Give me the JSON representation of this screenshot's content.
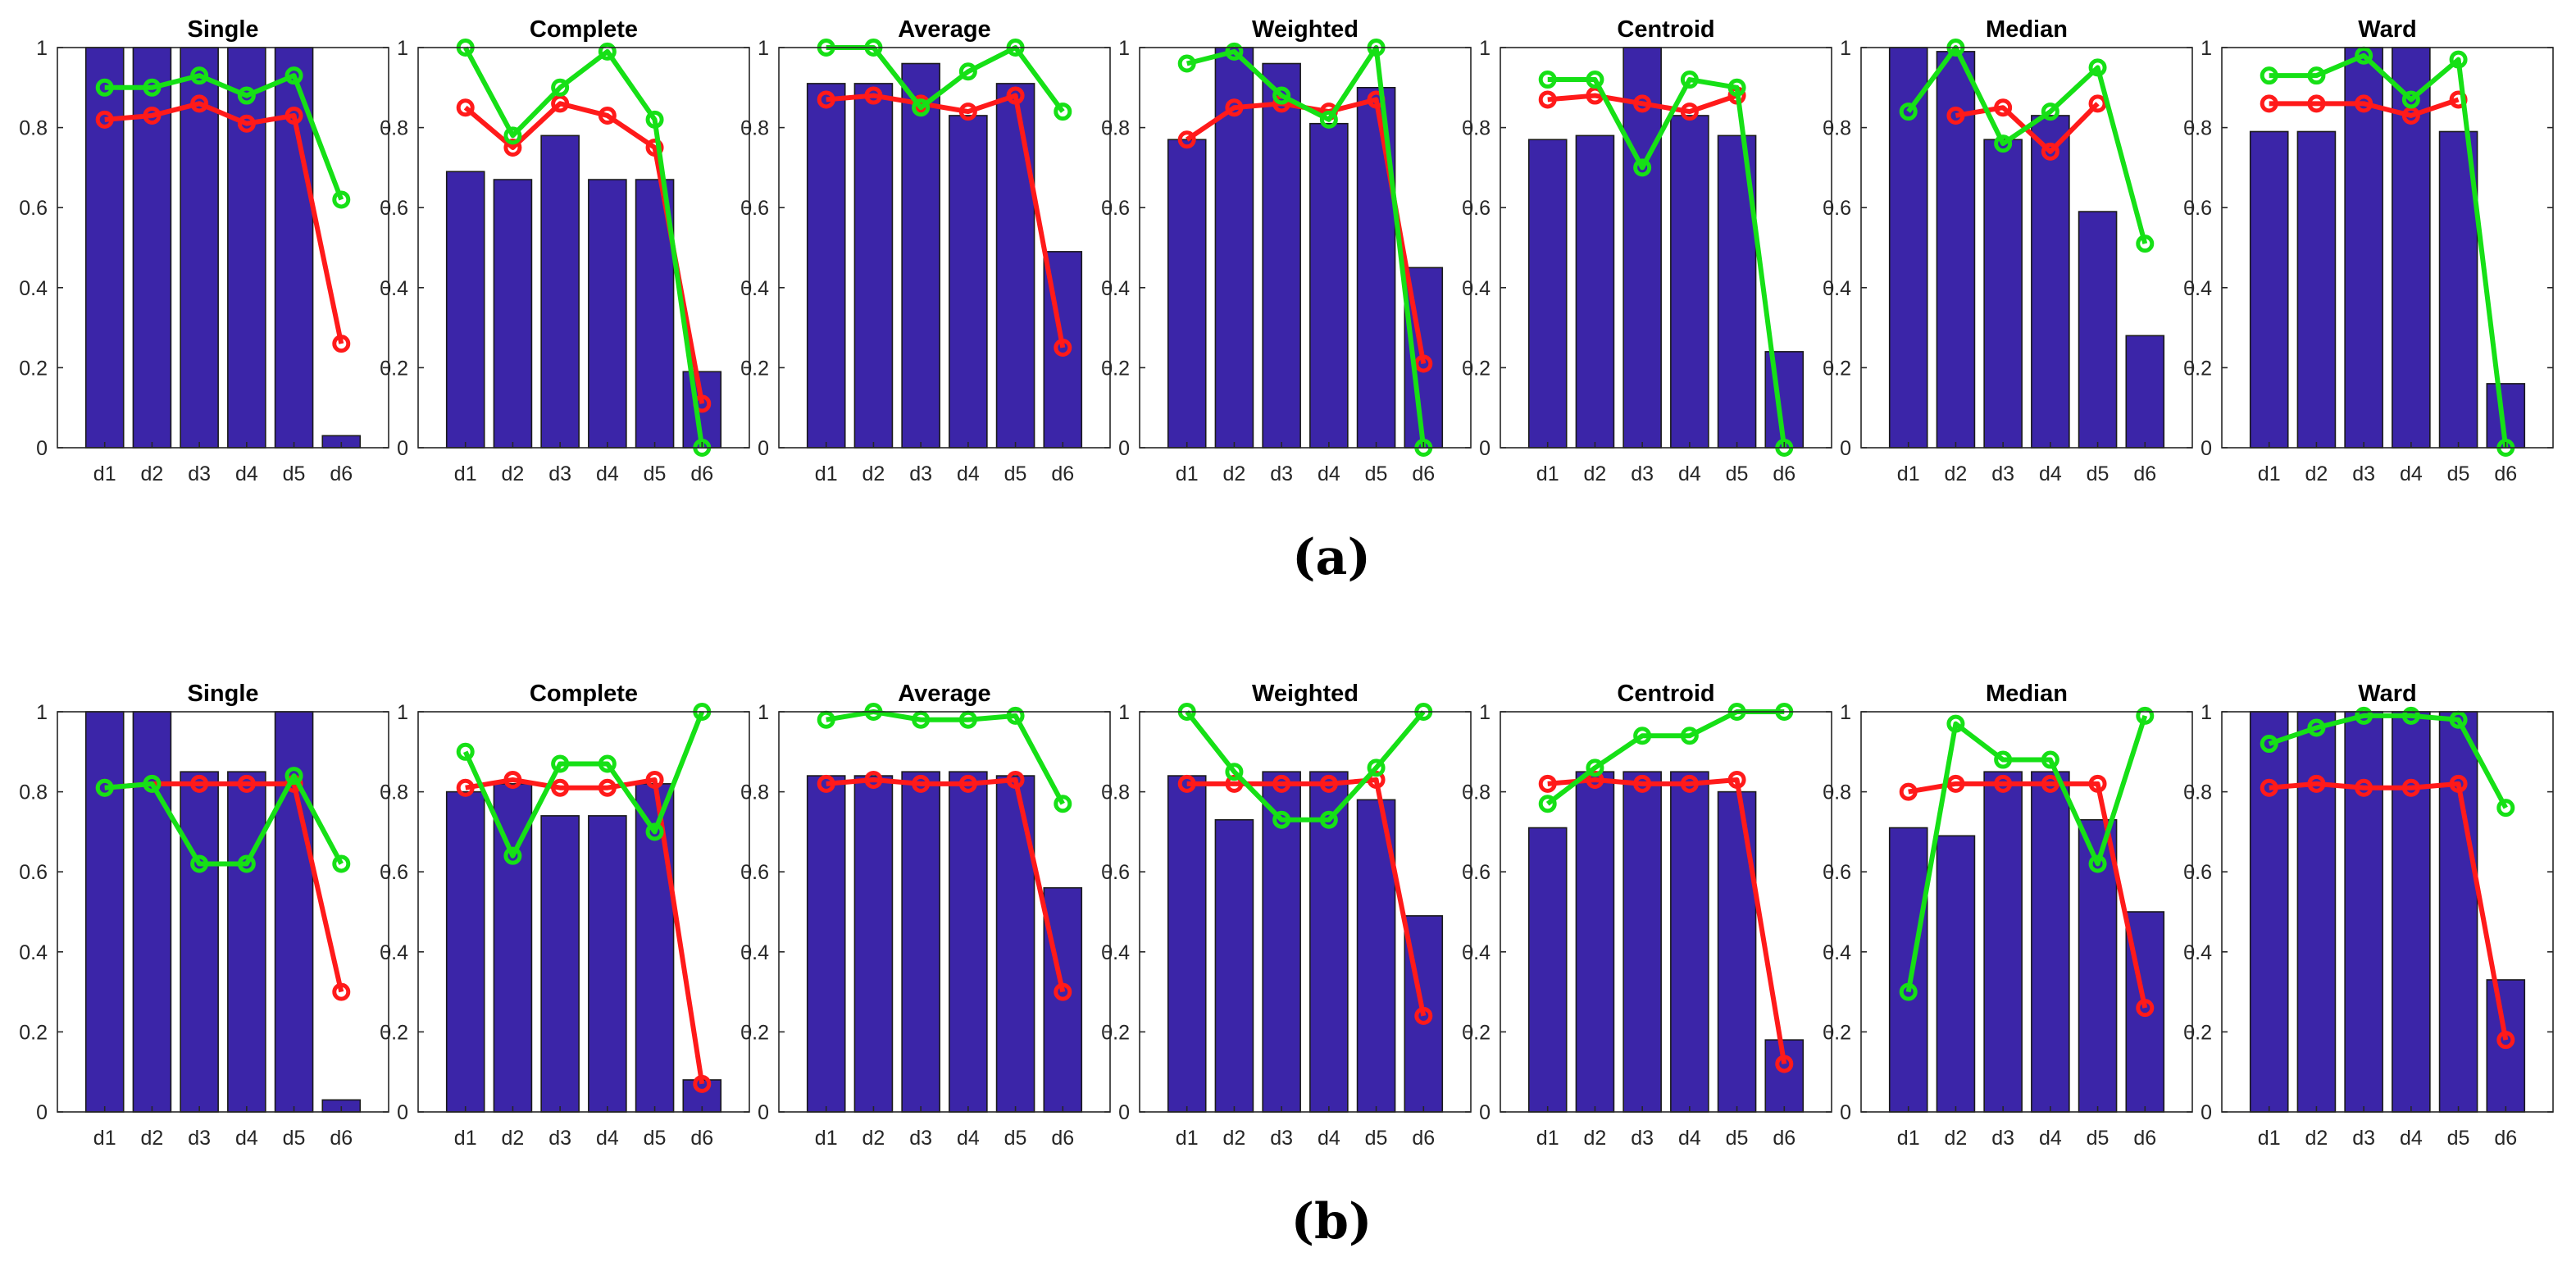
{
  "colors": {
    "bar": "#3B25A8",
    "red": "#FF1A1A",
    "green": "#16E016"
  },
  "chart_data": [
    {
      "id": "a",
      "caption": "(a)",
      "type": "bar+line",
      "ylim": [
        0,
        1
      ],
      "yticks": [
        "0",
        "0.2",
        "0.4",
        "0.6",
        "0.8",
        "1"
      ],
      "categories": [
        "d1",
        "d2",
        "d3",
        "d4",
        "d5",
        "d6"
      ],
      "panels": [
        {
          "title": "Single",
          "bars": [
            1.0,
            1.0,
            1.0,
            1.0,
            1.0,
            0.03
          ],
          "red": [
            0.82,
            0.83,
            0.86,
            0.81,
            0.83,
            0.26
          ],
          "green": [
            0.9,
            0.9,
            0.93,
            0.88,
            0.93,
            0.62
          ]
        },
        {
          "title": "Complete",
          "bars": [
            0.69,
            0.67,
            0.78,
            0.67,
            0.67,
            0.19
          ],
          "red": [
            0.85,
            0.75,
            0.86,
            0.83,
            0.75,
            0.11
          ],
          "green": [
            1.0,
            0.78,
            0.9,
            0.99,
            0.82,
            0.0
          ]
        },
        {
          "title": "Average",
          "bars": [
            0.91,
            0.91,
            0.96,
            0.83,
            0.91,
            0.49
          ],
          "red": [
            0.87,
            0.88,
            0.86,
            0.84,
            0.88,
            0.25
          ],
          "green": [
            1.0,
            1.0,
            0.85,
            0.94,
            1.0,
            0.84
          ]
        },
        {
          "title": "Weighted",
          "bars": [
            0.77,
            1.0,
            0.96,
            0.81,
            0.9,
            0.45
          ],
          "red": [
            0.77,
            0.85,
            0.86,
            0.84,
            0.87,
            0.21
          ],
          "green": [
            0.96,
            0.99,
            0.88,
            0.82,
            1.0,
            0.0
          ]
        },
        {
          "title": "Centroid",
          "bars": [
            0.77,
            0.78,
            1.0,
            0.83,
            0.78,
            0.24
          ],
          "red": [
            0.87,
            0.88,
            0.86,
            0.84,
            0.88,
            null
          ],
          "green": [
            0.92,
            0.92,
            0.7,
            0.92,
            0.9,
            0.0
          ]
        },
        {
          "title": "Median",
          "bars": [
            1.0,
            0.99,
            0.77,
            0.83,
            0.59,
            0.28
          ],
          "red": [
            null,
            0.83,
            0.85,
            0.74,
            0.86,
            null
          ],
          "green": [
            0.84,
            1.0,
            0.76,
            0.84,
            0.95,
            0.51
          ]
        },
        {
          "title": "Ward",
          "bars": [
            0.79,
            0.79,
            1.0,
            1.0,
            0.79,
            0.16
          ],
          "red": [
            0.86,
            0.86,
            0.86,
            0.83,
            0.87,
            null
          ],
          "green": [
            0.93,
            0.93,
            0.98,
            0.87,
            0.97,
            0.0
          ]
        }
      ]
    },
    {
      "id": "b",
      "caption": "(b)",
      "type": "bar+line",
      "ylim": [
        0,
        1
      ],
      "yticks": [
        "0",
        "0.2",
        "0.4",
        "0.6",
        "0.8",
        "1"
      ],
      "categories": [
        "d1",
        "d2",
        "d3",
        "d4",
        "d5",
        "d6"
      ],
      "panels": [
        {
          "title": "Single",
          "bars": [
            1.0,
            1.0,
            0.85,
            0.85,
            1.0,
            0.03
          ],
          "red": [
            0.81,
            0.82,
            0.82,
            0.82,
            0.82,
            0.3
          ],
          "green": [
            0.81,
            0.82,
            0.62,
            0.62,
            0.84,
            0.62
          ]
        },
        {
          "title": "Complete",
          "bars": [
            0.8,
            0.82,
            0.74,
            0.74,
            0.82,
            0.08
          ],
          "red": [
            0.81,
            0.83,
            0.81,
            0.81,
            0.83,
            0.07
          ],
          "green": [
            0.9,
            0.64,
            0.87,
            0.87,
            0.7,
            1.0
          ]
        },
        {
          "title": "Average",
          "bars": [
            0.84,
            0.84,
            0.85,
            0.85,
            0.84,
            0.56
          ],
          "red": [
            0.82,
            0.83,
            0.82,
            0.82,
            0.83,
            0.3
          ],
          "green": [
            0.98,
            1.0,
            0.98,
            0.98,
            0.99,
            0.77
          ]
        },
        {
          "title": "Weighted",
          "bars": [
            0.84,
            0.73,
            0.85,
            0.85,
            0.78,
            0.49
          ],
          "red": [
            0.82,
            0.82,
            0.82,
            0.82,
            0.83,
            0.24
          ],
          "green": [
            1.0,
            0.85,
            0.73,
            0.73,
            0.86,
            1.0
          ]
        },
        {
          "title": "Centroid",
          "bars": [
            0.71,
            0.85,
            0.85,
            0.85,
            0.8,
            0.18
          ],
          "red": [
            0.82,
            0.83,
            0.82,
            0.82,
            0.83,
            0.12
          ],
          "green": [
            0.77,
            0.86,
            0.94,
            0.94,
            1.0,
            1.0
          ]
        },
        {
          "title": "Median",
          "bars": [
            0.71,
            0.69,
            0.85,
            0.85,
            0.73,
            0.5
          ],
          "red": [
            0.8,
            0.82,
            0.82,
            0.82,
            0.82,
            0.26
          ],
          "green": [
            0.3,
            0.97,
            0.88,
            0.88,
            0.62,
            0.99
          ]
        },
        {
          "title": "Ward",
          "bars": [
            1.0,
            1.0,
            1.0,
            1.0,
            1.0,
            0.33
          ],
          "red": [
            0.81,
            0.82,
            0.81,
            0.81,
            0.82,
            0.18
          ],
          "green": [
            0.92,
            0.96,
            0.99,
            0.99,
            0.98,
            0.76
          ]
        }
      ]
    }
  ]
}
